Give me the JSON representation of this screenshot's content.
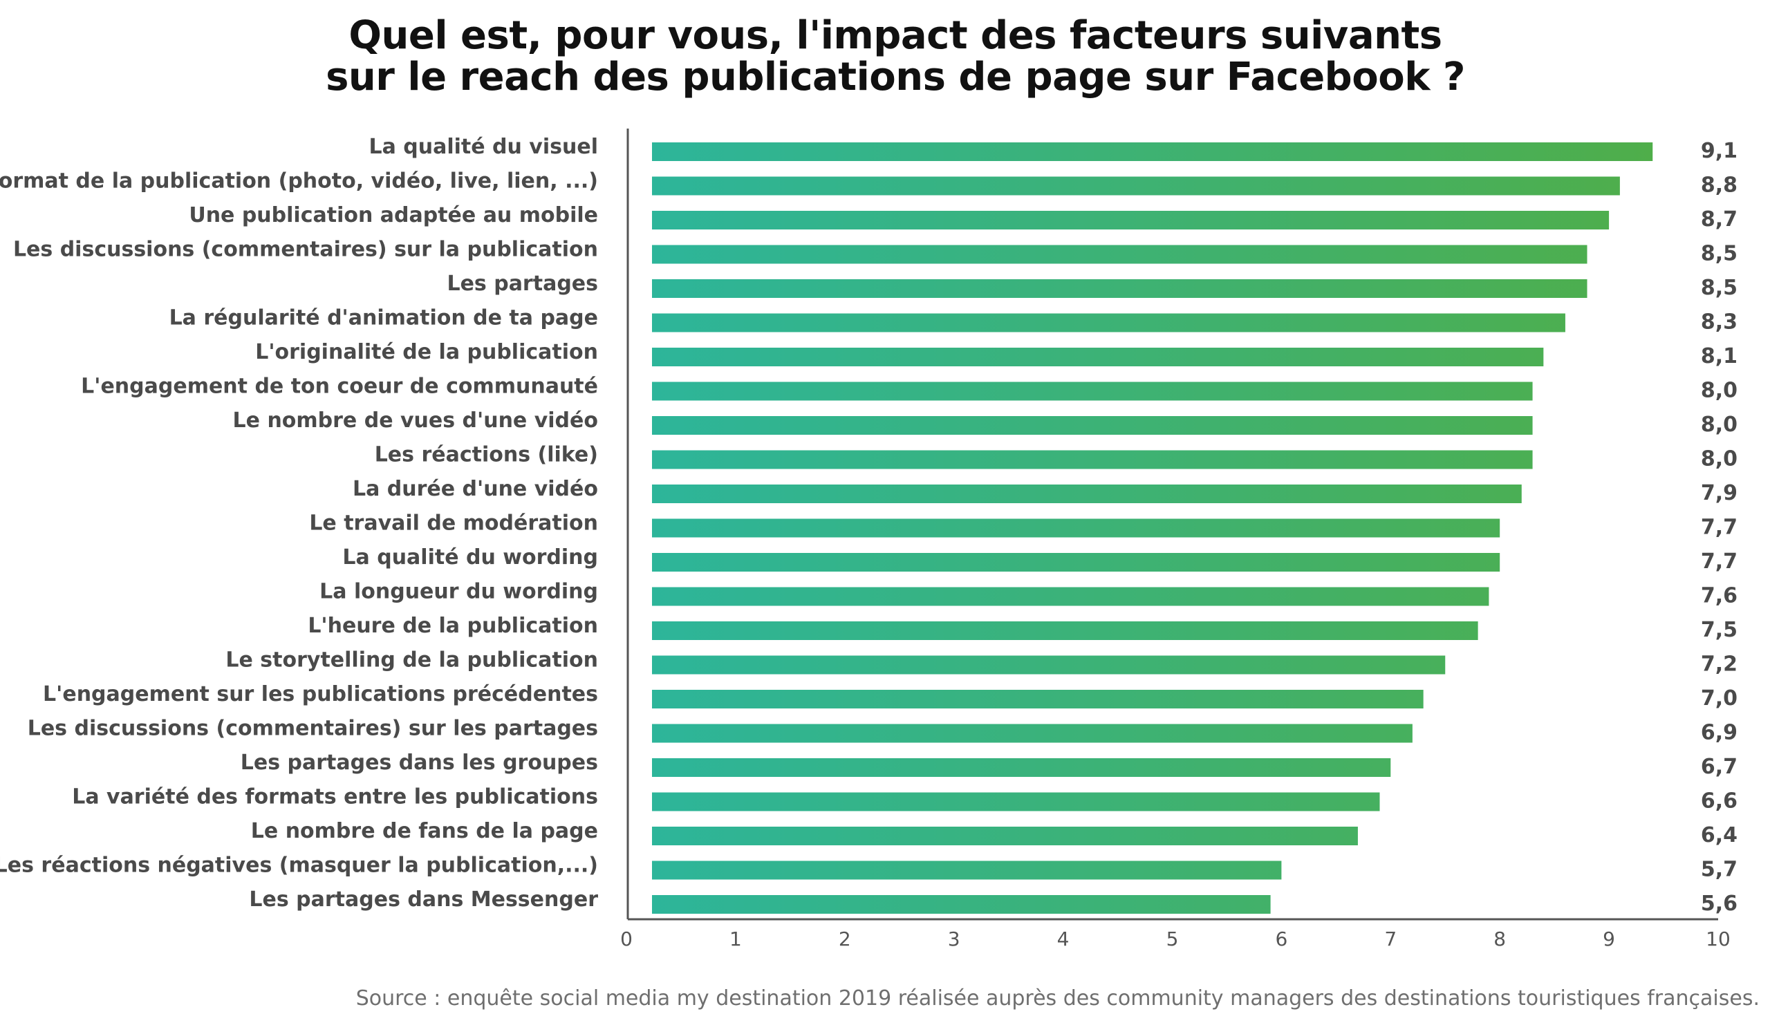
{
  "title": {
    "line1": "Quel est, pour vous, l'impact des facteurs suivants",
    "line2": "sur le reach des publications de page sur Facebook ?"
  },
  "source": "Source : enquête social media my destination 2019 réalisée auprès des community managers des destinations touristiques françaises.",
  "colors": {
    "bar_start": "#2db59a",
    "bar_end": "#4fae4a",
    "axis": "#555555",
    "label": "#4a4a4a"
  },
  "chart_data": {
    "type": "bar",
    "orientation": "horizontal",
    "title": "Quel est, pour vous, l'impact des facteurs suivants sur le reach des publications de page sur Facebook ?",
    "xlim": [
      0,
      10
    ],
    "xticks": [
      "0",
      "1",
      "2",
      "3",
      "4",
      "5",
      "6",
      "7",
      "8",
      "9",
      "10"
    ],
    "grid": false,
    "categories": [
      "La qualité du visuel",
      "Le format de la publication (photo, vidéo, live, lien, ...)",
      "Une publication adaptée au mobile",
      "Les discussions (commentaires) sur la publication",
      "Les partages",
      "La régularité d'animation de ta page",
      "L'originalité de la publication",
      "L'engagement de ton coeur de communauté",
      "Le nombre de vues d'une vidéo",
      "Les réactions (like)",
      "La durée d'une vidéo",
      "Le travail de modération",
      "La qualité du wording",
      "La longueur du wording",
      "L'heure de la publication",
      "Le storytelling de la publication",
      "L'engagement sur les publications précédentes",
      "Les discussions (commentaires) sur les partages",
      "Les partages dans les groupes",
      "La variété des formats entre les publications",
      "Le nombre de fans de la page",
      "Les réactions négatives (masquer la publication,...)",
      "Les partages dans Messenger"
    ],
    "values": [
      9.1,
      8.8,
      8.7,
      8.5,
      8.5,
      8.3,
      8.1,
      8.0,
      8.0,
      8.0,
      7.9,
      7.7,
      7.7,
      7.6,
      7.5,
      7.2,
      7.0,
      6.9,
      6.7,
      6.6,
      6.4,
      5.7,
      5.6
    ],
    "value_labels": [
      "9,1",
      "8,8",
      "8,7",
      "8,5",
      "8,5",
      "8,3",
      "8,1",
      "8,0",
      "8,0",
      "8,0",
      "7,9",
      "7,7",
      "7,7",
      "7,6",
      "7,5",
      "7,2",
      "7,0",
      "6,9",
      "6,7",
      "6,6",
      "6,4",
      "5,7",
      "5,6"
    ]
  }
}
